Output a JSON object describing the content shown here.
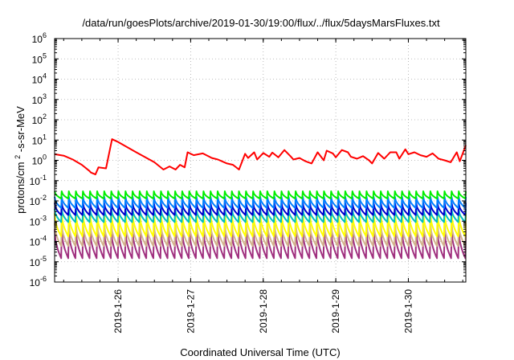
{
  "chart_data": {
    "type": "line",
    "title": "/data/run/goesPlots/archive/2019-01-30/19:00/flux/../flux/5daysMarsFluxes.txt",
    "xlabel": "Coordinated Universal Time (UTC)",
    "ylabel": {
      "base": "protons/cm",
      "sup": "2",
      "rest": "-s-sr-MeV"
    },
    "yscale": "log",
    "ylim": [
      -6,
      6
    ],
    "y_ticks": [
      {
        "exp": -6,
        "base": "10",
        "sup": "-6"
      },
      {
        "exp": -5,
        "base": "10",
        "sup": "-5"
      },
      {
        "exp": -4,
        "base": "10",
        "sup": "-4"
      },
      {
        "exp": -3,
        "base": "10",
        "sup": "-3"
      },
      {
        "exp": -2,
        "base": "10",
        "sup": "-2"
      },
      {
        "exp": -1,
        "base": "10",
        "sup": "-1"
      },
      {
        "exp": 0,
        "base": "10",
        "sup": "0"
      },
      {
        "exp": 1,
        "base": "10",
        "sup": "1"
      },
      {
        "exp": 2,
        "base": "10",
        "sup": "2"
      },
      {
        "exp": 3,
        "base": "10",
        "sup": "3"
      },
      {
        "exp": 4,
        "base": "10",
        "sup": "4"
      },
      {
        "exp": 5,
        "base": "10",
        "sup": "5"
      },
      {
        "exp": 6,
        "base": "10",
        "sup": "6"
      }
    ],
    "xlim": [
      "2019-01-25T03:00",
      "2019-01-30T19:00"
    ],
    "x_ticks": [
      {
        "x": "2019-01-26T00:00",
        "label": "2019-1-26"
      },
      {
        "x": "2019-01-27T00:00",
        "label": "2019-1-27"
      },
      {
        "x": "2019-01-28T00:00",
        "label": "2019-1-28"
      },
      {
        "x": "2019-01-29T00:00",
        "label": "2019-1-29"
      },
      {
        "x": "2019-01-30T00:00",
        "label": "2019-1-30"
      }
    ],
    "grid": true,
    "legend": "none",
    "top_series": {
      "color": "#ff0000",
      "x": [
        "2019-01-25T03:00",
        "2019-01-25T06:00",
        "2019-01-25T09:00",
        "2019-01-25T12:00",
        "2019-01-25T14:30",
        "2019-01-25T15:00",
        "2019-01-25T16:30",
        "2019-01-25T17:30",
        "2019-01-25T20:00",
        "2019-01-25T22:00",
        "2019-01-26T00:00",
        "2019-01-26T06:00",
        "2019-01-26T12:00",
        "2019-01-26T15:00",
        "2019-01-26T17:00",
        "2019-01-26T19:00",
        "2019-01-26T20:30",
        "2019-01-26T22:00",
        "2019-01-26T23:00",
        "2019-01-27T01:00",
        "2019-01-27T04:00",
        "2019-01-27T07:00",
        "2019-01-27T09:00",
        "2019-01-27T12:00",
        "2019-01-27T14:00",
        "2019-01-27T16:00",
        "2019-01-27T18:00",
        "2019-01-27T19:00",
        "2019-01-27T21:00",
        "2019-01-27T22:00",
        "2019-01-28T00:00",
        "2019-01-28T02:00",
        "2019-01-28T03:00",
        "2019-01-28T05:00",
        "2019-01-28T07:00",
        "2019-01-28T09:00",
        "2019-01-28T10:00",
        "2019-01-28T12:00",
        "2019-01-28T14:00",
        "2019-01-28T16:00",
        "2019-01-28T18:00",
        "2019-01-28T20:00",
        "2019-01-28T21:00",
        "2019-01-28T23:00",
        "2019-01-29T00:00",
        "2019-01-29T02:00",
        "2019-01-29T04:00",
        "2019-01-29T05:00",
        "2019-01-29T07:00",
        "2019-01-29T09:00",
        "2019-01-29T11:00",
        "2019-01-29T12:00",
        "2019-01-29T14:00",
        "2019-01-29T16:00",
        "2019-01-29T18:00",
        "2019-01-29T20:00",
        "2019-01-29T21:00",
        "2019-01-29T23:00",
        "2019-01-30T00:00",
        "2019-01-30T02:00",
        "2019-01-30T04:00",
        "2019-01-30T06:00",
        "2019-01-30T08:00",
        "2019-01-30T10:00",
        "2019-01-30T12:00",
        "2019-01-30T14:00",
        "2019-01-30T16:00",
        "2019-01-30T17:00",
        "2019-01-30T18:00",
        "2019-01-30T19:00"
      ],
      "y": [
        2,
        1.7,
        1.1,
        0.6,
        0.3,
        0.25,
        0.2,
        0.45,
        0.4,
        11,
        8,
        2.5,
        0.8,
        0.35,
        0.5,
        0.35,
        0.6,
        0.45,
        2.5,
        1.8,
        2.2,
        1.3,
        1.1,
        0.7,
        0.6,
        0.35,
        2.1,
        1.3,
        2.5,
        1.1,
        2.3,
        1.5,
        2.4,
        1.4,
        3.2,
        1.6,
        1.1,
        1.3,
        0.9,
        0.7,
        2.5,
        1,
        3,
        2.2,
        1.4,
        3.2,
        2.5,
        1.5,
        1.2,
        1.6,
        1,
        0.7,
        2.3,
        1.2,
        2.5,
        2.5,
        1.2,
        3.5,
        2,
        2.5,
        1.8,
        1.5,
        2.2,
        1.2,
        1,
        0.8,
        2.5,
        0.9,
        2.2,
        5.5
      ]
    },
    "periodic_series": {
      "cycles": 58,
      "x_start": "2019-01-25T03:00",
      "x_end": "2019-01-30T19:00",
      "series": [
        {
          "color": "#00ee00",
          "high": 0.03,
          "low": 0.013
        },
        {
          "color": "#007fff",
          "high": 0.016,
          "low": 0.0045
        },
        {
          "color": "#0000cd",
          "high": 0.008,
          "low": 0.002
        },
        {
          "color": "#00bfbf",
          "high": 0.004,
          "low": 0.0009
        },
        {
          "color": "#ffff00",
          "high": 0.0025,
          "low": 0.00018
        },
        {
          "color": "#d2b48c",
          "high": 0.0008,
          "low": 6e-05
        },
        {
          "color": "#a0307f",
          "high": 0.0004,
          "low": 1.5e-05
        }
      ]
    }
  }
}
